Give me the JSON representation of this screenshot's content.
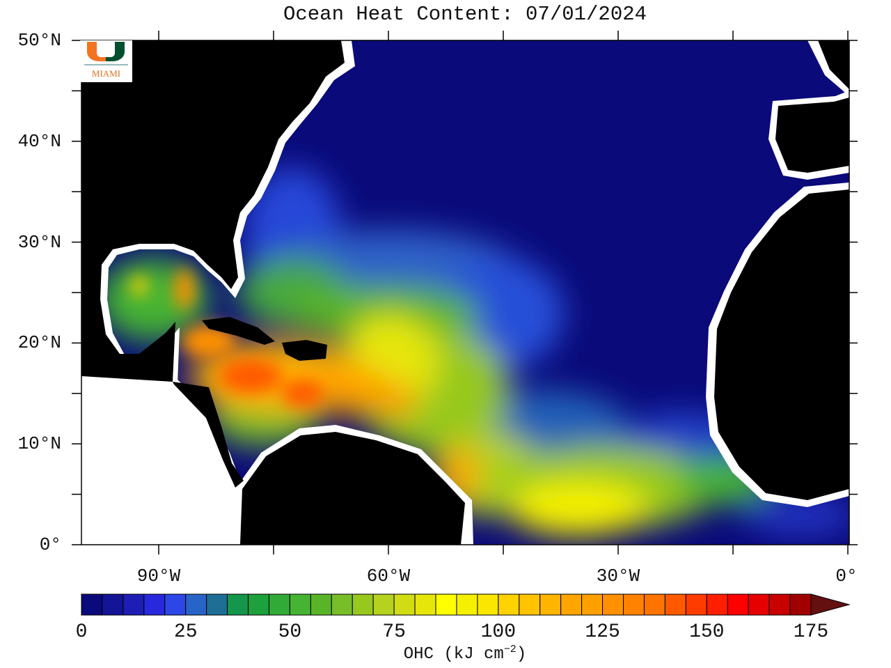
{
  "title": "Ocean Heat Content: 07/01/2024",
  "logo": {
    "text": "MIAMI",
    "colors": {
      "orange": "#f47321",
      "green": "#005030"
    }
  },
  "lat_labels": [
    "50°N",
    "40°N",
    "30°N",
    "20°N",
    "10°N",
    "0°"
  ],
  "lon_labels": [
    "90°W",
    "60°W",
    "30°W",
    "0°"
  ],
  "map": {
    "lon_range": [
      -100,
      0
    ],
    "lat_range": [
      0,
      50
    ],
    "land_color": "#000000",
    "no_data_color": "#ffffff",
    "ocean_min_color": "#0a0a7a"
  },
  "colorbar": {
    "min": 0,
    "max": 175,
    "step": 5,
    "tick_labels": [
      "0",
      "25",
      "50",
      "75",
      "100",
      "125",
      "150",
      "175"
    ],
    "unit_label": "OHC (kJ cm",
    "unit_exp": "−2",
    "unit_close": ")",
    "colors": [
      "#0a0a7a",
      "#141496",
      "#1e1eb4",
      "#2828dc",
      "#2d46e6",
      "#2864c8",
      "#1e6e96",
      "#14964b",
      "#1ea03c",
      "#32aa37",
      "#46b432",
      "#5ab428",
      "#78be28",
      "#96c81e",
      "#b4d21e",
      "#d2dc14",
      "#e6e60a",
      "#ffff00",
      "#f5f000",
      "#fae600",
      "#ffd200",
      "#ffc300",
      "#ffb400",
      "#ffa500",
      "#ffa000",
      "#ff9100",
      "#ff8200",
      "#ff7300",
      "#ff5a00",
      "#ff3c00",
      "#ff1e00",
      "#ff0000",
      "#e60000",
      "#c80000",
      "#a00000"
    ],
    "overflow_color": "#641010"
  }
}
